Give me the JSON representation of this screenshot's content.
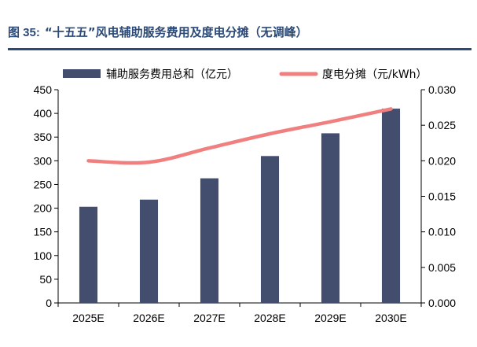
{
  "figure": {
    "number": "图 35:",
    "title": "“十五五”风电辅助服务费用及度电分摊（无调峰）"
  },
  "colors": {
    "title": "#2b4a78",
    "bar": "#434e6e",
    "line": "#f08080"
  },
  "chart_data": {
    "type": "bar",
    "categories": [
      "2025E",
      "2026E",
      "2027E",
      "2028E",
      "2029E",
      "2030E"
    ],
    "series": [
      {
        "name": "辅助服务费用总和（亿元）",
        "type": "bar",
        "axis": "left",
        "values": [
          203,
          218,
          263,
          310,
          358,
          410
        ]
      },
      {
        "name": "度电分摊（元/kWh）",
        "type": "line",
        "axis": "right",
        "values": [
          0.02,
          0.0198,
          0.0218,
          0.0238,
          0.0255,
          0.0273
        ]
      }
    ],
    "ylim_left": [
      0,
      450
    ],
    "yticks_left": [
      "0",
      "50",
      "100",
      "150",
      "200",
      "250",
      "300",
      "350",
      "400",
      "450"
    ],
    "ylim_right": [
      0,
      0.03
    ],
    "yticks_right": [
      "0.000",
      "0.005",
      "0.010",
      "0.015",
      "0.020",
      "0.025",
      "0.030"
    ],
    "legend": "top",
    "grid": false
  }
}
